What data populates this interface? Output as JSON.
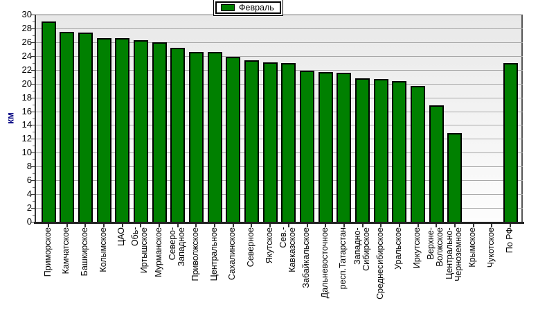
{
  "legend": {
    "label": "Февраль",
    "swatch_color": "#008000"
  },
  "y_axis": {
    "title": "км",
    "min": 0,
    "max": 30,
    "tick_step": 2,
    "tick_labels": [
      "0",
      "2",
      "4",
      "6",
      "8",
      "10",
      "12",
      "14",
      "16",
      "18",
      "20",
      "22",
      "24",
      "26",
      "28",
      "30"
    ]
  },
  "colors": {
    "bar_fill": "#008000",
    "bar_border": "#000000",
    "gridline": "#a8a8a8",
    "plot_bg_top": "#e8e8e8",
    "plot_bg_bottom": "#fdfdfd",
    "y_title_color": "#000080"
  },
  "chart_data": {
    "type": "bar",
    "title": "",
    "xlabel": "",
    "ylabel": "км",
    "ylim": [
      0,
      30
    ],
    "grid": "horizontal, every 2 units",
    "legend_position": "top-center",
    "series_name": "Февраль",
    "categories": [
      "Приморское",
      "Камчатское",
      "Башкирское",
      "Колымское",
      "ЦАО",
      "Обь-\nИртышское",
      "Мурманское",
      "Северо-\nЗападное",
      "Приволжское",
      "Центральное",
      "Сахалинское",
      "Северное",
      "Якутское",
      "Сев.-\nКавказское",
      "Забайкальское",
      "Дальневосточное",
      "респ.Татарстан",
      "Западно-\nСибирское",
      "Среднесибирское",
      "Уральское",
      "Иркутское",
      "Верхне-\nВолжское",
      "Центрально-\nЧерноземное",
      "Крымское",
      "Чукотское",
      "По РФ"
    ],
    "values": [
      29.0,
      27.5,
      27.4,
      26.6,
      26.6,
      26.3,
      26.0,
      25.2,
      24.6,
      24.6,
      23.9,
      23.4,
      23.1,
      23.0,
      21.9,
      21.7,
      21.6,
      20.8,
      20.7,
      20.4,
      19.7,
      16.9,
      12.8,
      0,
      0,
      23.0
    ]
  }
}
